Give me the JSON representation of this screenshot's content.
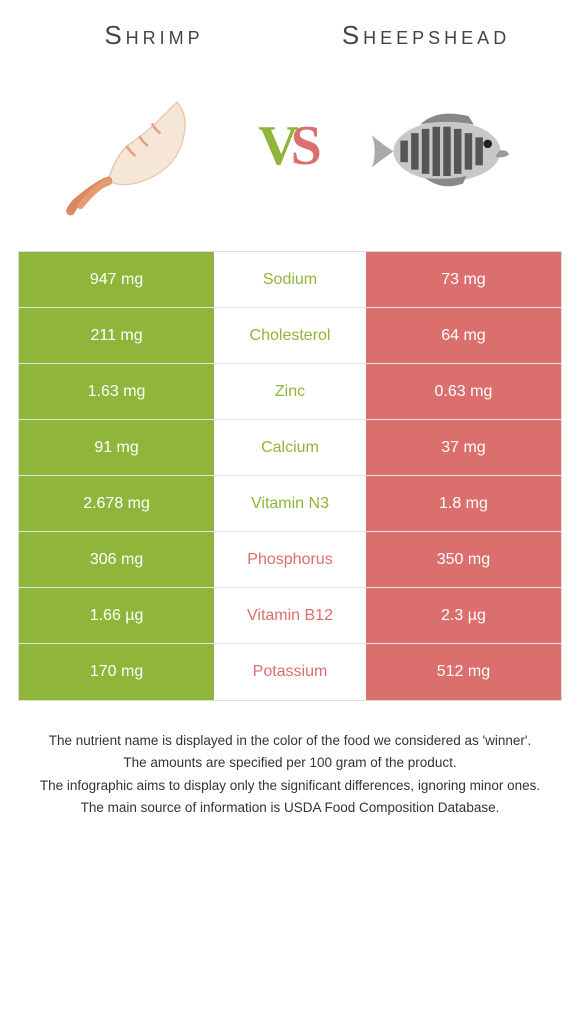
{
  "colors": {
    "left": "#8fb53a",
    "right": "#db6f6e",
    "background": "#ffffff",
    "border": "#dddddd"
  },
  "header": {
    "left_title": "Shrimp",
    "right_title": "Sheepshead",
    "vs_v": "V",
    "vs_s": "S"
  },
  "table": {
    "rows": [
      {
        "left": "947 mg",
        "label": "Sodium",
        "right": "73 mg",
        "winner": "left"
      },
      {
        "left": "211 mg",
        "label": "Cholesterol",
        "right": "64 mg",
        "winner": "left"
      },
      {
        "left": "1.63 mg",
        "label": "Zinc",
        "right": "0.63 mg",
        "winner": "left"
      },
      {
        "left": "91 mg",
        "label": "Calcium",
        "right": "37 mg",
        "winner": "left"
      },
      {
        "left": "2.678 mg",
        "label": "Vitamin N3",
        "right": "1.8 mg",
        "winner": "left"
      },
      {
        "left": "306 mg",
        "label": "Phosphorus",
        "right": "350 mg",
        "winner": "right"
      },
      {
        "left": "1.66 µg",
        "label": "Vitamin B12",
        "right": "2.3 µg",
        "winner": "right"
      },
      {
        "left": "170 mg",
        "label": "Potassium",
        "right": "512 mg",
        "winner": "right"
      }
    ]
  },
  "footer": {
    "line1": "The nutrient name is displayed in the color of the food we considered as 'winner'.",
    "line2": "The amounts are specified per 100 gram of the product.",
    "line3": "The infographic aims to display only the significant differences, ignoring minor ones.",
    "line4": "The main source of information is USDA Food Composition Database."
  }
}
